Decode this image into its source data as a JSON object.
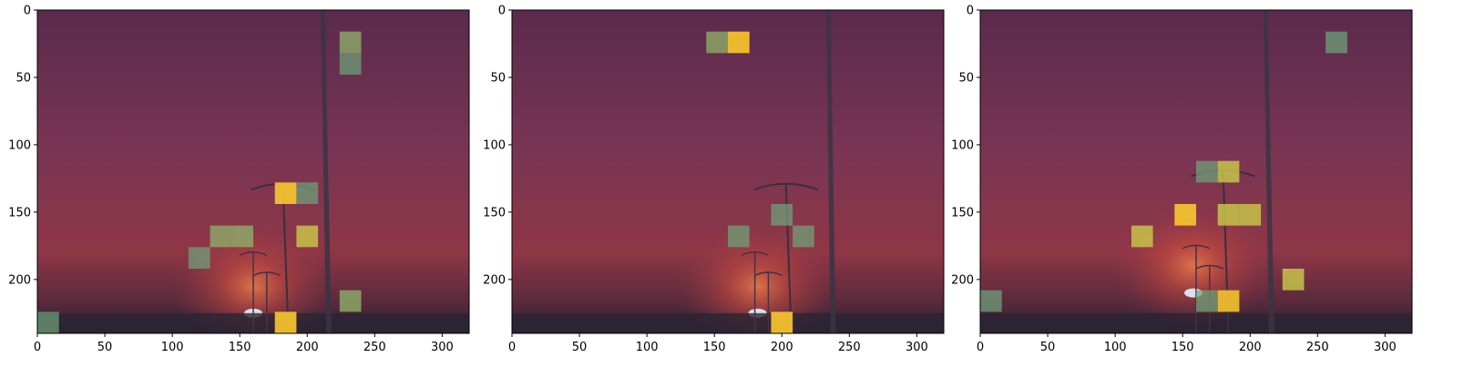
{
  "chart_data": [
    {
      "type": "heatmap",
      "title": "",
      "xlabel": "",
      "ylabel": "",
      "xlim": [
        0,
        320
      ],
      "ylim": [
        240,
        0
      ],
      "xticks": [
        0,
        50,
        100,
        150,
        200,
        250,
        300
      ],
      "yticks": [
        0,
        50,
        100,
        150,
        200
      ],
      "xtick_labels": [
        "0",
        "50",
        "100",
        "150",
        "200",
        "250",
        "300"
      ],
      "ytick_labels": [
        "0",
        "50",
        "100",
        "150",
        "200"
      ],
      "cell_size": 16,
      "background": "sunset street scene with street lamps and pole",
      "highlighted_cells": [
        {
          "x": 224,
          "y": 16,
          "level": 0.55
        },
        {
          "x": 224,
          "y": 32,
          "level": 0.4
        },
        {
          "x": 176,
          "y": 128,
          "level": 1.0
        },
        {
          "x": 192,
          "y": 128,
          "level": 0.45
        },
        {
          "x": 128,
          "y": 160,
          "level": 0.55
        },
        {
          "x": 144,
          "y": 160,
          "level": 0.6
        },
        {
          "x": 192,
          "y": 160,
          "level": 0.7
        },
        {
          "x": 112,
          "y": 176,
          "level": 0.4
        },
        {
          "x": 224,
          "y": 208,
          "level": 0.6
        },
        {
          "x": 0,
          "y": 224,
          "level": 0.4
        },
        {
          "x": 176,
          "y": 224,
          "level": 1.0
        }
      ]
    },
    {
      "type": "heatmap",
      "title": "",
      "xlabel": "",
      "ylabel": "",
      "xlim": [
        0,
        320
      ],
      "ylim": [
        240,
        0
      ],
      "xticks": [
        0,
        50,
        100,
        150,
        200,
        250,
        300
      ],
      "yticks": [
        0,
        50,
        100,
        150,
        200
      ],
      "xtick_labels": [
        "0",
        "50",
        "100",
        "150",
        "200",
        "250",
        "300"
      ],
      "ytick_labels": [
        "0",
        "50",
        "100",
        "150",
        "200"
      ],
      "cell_size": 16,
      "background": "sunset street scene with street lamps and pole",
      "highlighted_cells": [
        {
          "x": 144,
          "y": 16,
          "level": 0.55
        },
        {
          "x": 160,
          "y": 16,
          "level": 1.0
        },
        {
          "x": 192,
          "y": 144,
          "level": 0.45
        },
        {
          "x": 160,
          "y": 160,
          "level": 0.45
        },
        {
          "x": 208,
          "y": 160,
          "level": 0.45
        },
        {
          "x": 192,
          "y": 224,
          "level": 1.0
        }
      ]
    },
    {
      "type": "heatmap",
      "title": "",
      "xlabel": "",
      "ylabel": "",
      "xlim": [
        0,
        320
      ],
      "ylim": [
        240,
        0
      ],
      "xticks": [
        0,
        50,
        100,
        150,
        200,
        250,
        300
      ],
      "yticks": [
        0,
        50,
        100,
        150,
        200
      ],
      "xtick_labels": [
        "0",
        "50",
        "100",
        "150",
        "200",
        "250",
        "300"
      ],
      "ytick_labels": [
        "0",
        "50",
        "100",
        "150",
        "200"
      ],
      "cell_size": 16,
      "background": "sunset street scene with street lamps and pole",
      "highlighted_cells": [
        {
          "x": 256,
          "y": 16,
          "level": 0.45
        },
        {
          "x": 176,
          "y": 112,
          "level": 0.7
        },
        {
          "x": 160,
          "y": 112,
          "level": 0.45
        },
        {
          "x": 144,
          "y": 144,
          "level": 1.0
        },
        {
          "x": 176,
          "y": 144,
          "level": 0.7
        },
        {
          "x": 192,
          "y": 144,
          "level": 0.7
        },
        {
          "x": 112,
          "y": 160,
          "level": 0.7
        },
        {
          "x": 224,
          "y": 192,
          "level": 0.7
        },
        {
          "x": 176,
          "y": 208,
          "level": 0.9
        },
        {
          "x": 0,
          "y": 208,
          "level": 0.45
        },
        {
          "x": 160,
          "y": 208,
          "level": 0.45
        }
      ]
    }
  ]
}
